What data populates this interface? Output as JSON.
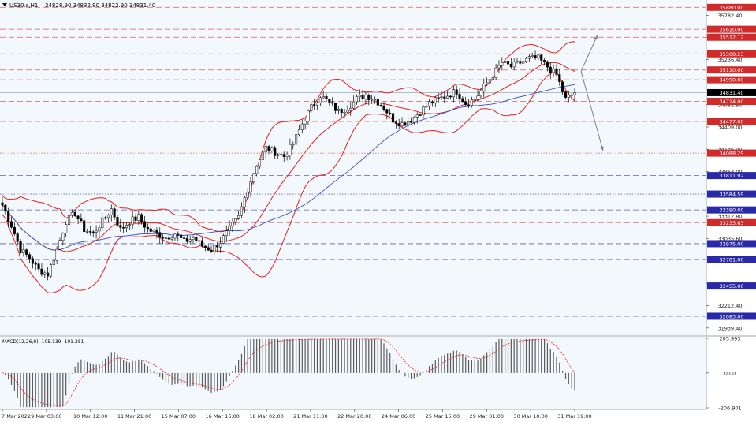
{
  "header": {
    "symbol_label": "US30.s,H1",
    "ohlc": "34828.90 34832.90 34822.90 34831.40"
  },
  "colors": {
    "background": "#f3f8fc",
    "bull": "#000000",
    "bear": "#000000",
    "bollinger": "#e8201a",
    "ma_fast": "#e8201a",
    "ma_slow": "#3a4fc7",
    "resistance": "#d02a2a",
    "support": "#2a2aa8",
    "current_price": "#000000",
    "macd_hist": "#5a5a5a",
    "macd_signal": "#e8201a",
    "projection": "#808080"
  },
  "chart_data": {
    "type": "candlestick",
    "symbol": "US30.s",
    "timeframe": "H1",
    "ylim": [
      31850,
      35970
    ],
    "y_ticks": [
      35782.4,
      35509.3,
      35236.4,
      34682.8,
      34409.0,
      34136.0,
      33863.0,
      33312.8,
      33035.6,
      32489.0,
      32212.4,
      31939.4
    ],
    "x_ticks": [
      "7 Mar 2022",
      "9 Mar 03:00",
      "10 Mar 12:00",
      "11 Mar 21:00",
      "15 Mar 07:00",
      "16 Mar 16:00",
      "18 Mar 02:00",
      "21 Mar 11:00",
      "22 Mar 20:00",
      "24 Mar 06:00",
      "25 Mar 15:00",
      "29 Mar 01:00",
      "30 Mar 10:00",
      "31 Mar 19:00"
    ],
    "current_price": {
      "label": "34831.40",
      "value": 34831.4
    },
    "levels": [
      {
        "value": 35880.0,
        "label": "35880.00",
        "kind": "resistance",
        "style": "dashed"
      },
      {
        "value": 35610.0,
        "label": "35610.00",
        "kind": "resistance",
        "style": "dashed"
      },
      {
        "value": 35512.12,
        "label": "35512.12",
        "kind": "resistance",
        "style": "dashed"
      },
      {
        "value": 35308.23,
        "label": "35308.23",
        "kind": "resistance",
        "style": "dashed"
      },
      {
        "value": 35110.0,
        "label": "35110.00",
        "kind": "resistance",
        "style": "dashed"
      },
      {
        "value": 34990.0,
        "label": "34990.00",
        "kind": "resistance",
        "style": "dashed"
      },
      {
        "value": 34724.0,
        "label": "34724.00",
        "kind": "resistance",
        "style": "dashed"
      },
      {
        "value": 34477.0,
        "label": "34477.00",
        "kind": "resistance",
        "style": "dashed"
      },
      {
        "value": 34088.29,
        "label": "34088.29",
        "kind": "resistance",
        "style": "dotted"
      },
      {
        "value": 33811.92,
        "label": "33811.92",
        "kind": "support",
        "style": "dashed"
      },
      {
        "value": 33584.59,
        "label": "33584.59",
        "kind": "support",
        "style": "dotted"
      },
      {
        "value": 33390.0,
        "label": "33390.00",
        "kind": "support",
        "style": "dashed"
      },
      {
        "value": 33233.63,
        "label": "33233.63",
        "kind": "resistance",
        "style": "dashed"
      },
      {
        "value": 32975.0,
        "label": "32975.00",
        "kind": "support",
        "style": "dashed"
      },
      {
        "value": 32781.0,
        "label": "32781.00",
        "kind": "support",
        "style": "dashed"
      },
      {
        "value": 32455.0,
        "label": "32455.00",
        "kind": "support",
        "style": "dashed"
      },
      {
        "value": 32083.0,
        "label": "32083.00",
        "kind": "support",
        "style": "dashed"
      }
    ],
    "price_path": [
      [
        0,
        33450
      ],
      [
        3,
        33200
      ],
      [
        6,
        32900
      ],
      [
        9,
        32800
      ],
      [
        12,
        32650
      ],
      [
        15,
        32600
      ],
      [
        18,
        32900
      ],
      [
        21,
        33250
      ],
      [
        24,
        33350
      ],
      [
        27,
        33150
      ],
      [
        30,
        33100
      ],
      [
        33,
        33250
      ],
      [
        36,
        33400
      ],
      [
        39,
        33150
      ],
      [
        42,
        33250
      ],
      [
        45,
        33300
      ],
      [
        48,
        33150
      ],
      [
        51,
        33100
      ],
      [
        54,
        33050
      ],
      [
        57,
        33100
      ],
      [
        60,
        33000
      ],
      [
        63,
        33050
      ],
      [
        66,
        32950
      ],
      [
        69,
        32900
      ],
      [
        72,
        33000
      ],
      [
        75,
        33150
      ],
      [
        78,
        33300
      ],
      [
        81,
        33650
      ],
      [
        84,
        33950
      ],
      [
        87,
        34150
      ],
      [
        90,
        34100
      ],
      [
        93,
        34050
      ],
      [
        96,
        34200
      ],
      [
        99,
        34450
      ],
      [
        102,
        34650
      ],
      [
        105,
        34800
      ],
      [
        108,
        34700
      ],
      [
        111,
        34600
      ],
      [
        114,
        34650
      ],
      [
        117,
        34750
      ],
      [
        120,
        34800
      ],
      [
        123,
        34750
      ],
      [
        126,
        34650
      ],
      [
        129,
        34500
      ],
      [
        132,
        34450
      ],
      [
        135,
        34500
      ],
      [
        138,
        34600
      ],
      [
        141,
        34700
      ],
      [
        144,
        34750
      ],
      [
        147,
        34800
      ],
      [
        150,
        34850
      ],
      [
        153,
        34700
      ],
      [
        156,
        34750
      ],
      [
        159,
        34900
      ],
      [
        162,
        35050
      ],
      [
        165,
        35200
      ],
      [
        168,
        35150
      ],
      [
        171,
        35200
      ],
      [
        174,
        35250
      ],
      [
        177,
        35250
      ],
      [
        180,
        35150
      ],
      [
        183,
        35050
      ],
      [
        186,
        34750
      ],
      [
        189,
        34831
      ]
    ],
    "projection": {
      "up_target": 35540,
      "down_target": 34115,
      "pivot": 35095
    },
    "macd": {
      "label": "MACD(12,26,9) -105.139 -101.281",
      "params": [
        12,
        26,
        9
      ],
      "value": -105.139,
      "signal": -101.281,
      "ylim": [
        -206.901,
        205.993
      ],
      "y_ticks": [
        205.993,
        0.0,
        -206.901
      ]
    }
  }
}
